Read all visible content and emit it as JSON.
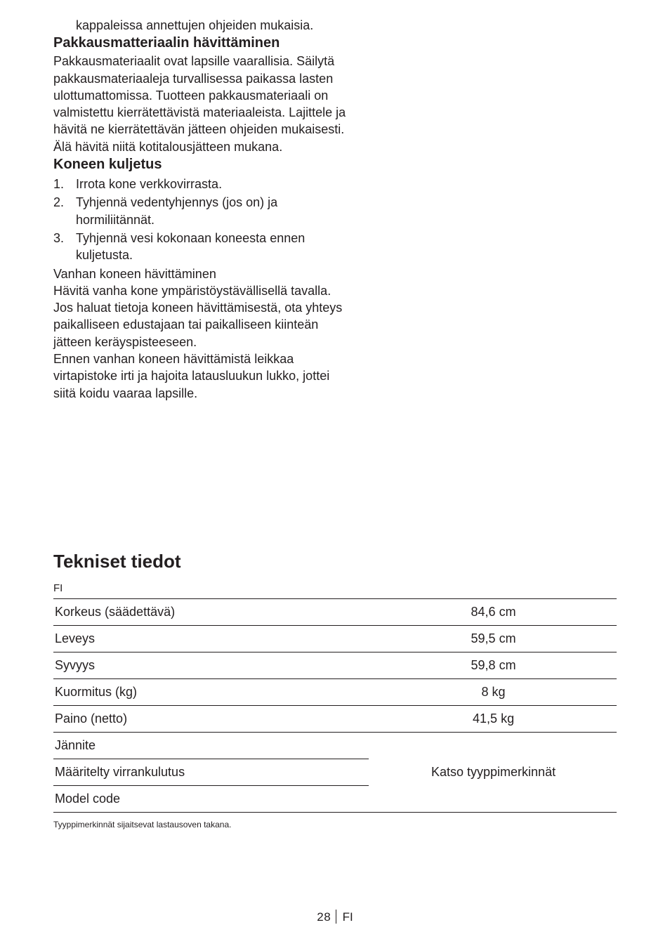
{
  "intro_line": "kappaleissa annettujen ohjeiden mukaisia.",
  "h_packaging": "Pakkausmatteriaalin hävittäminen",
  "p_packaging": "Pakkausmateriaalit ovat lapsille vaarallisia. Säilytä pakkausmateriaaleja turvallisessa paikassa lasten ulottumattomissa. Tuotteen pakkausmateriaali on valmistettu kierrätettävistä materiaaleista. Lajittele ja hävitä ne kierrätettävän jätteen ohjeiden mukaisesti. Älä hävitä niitä kotitalousjätteen mukana.",
  "h_transport": "Koneen kuljetus",
  "transport_items": [
    "Irrota kone verkkovirrasta.",
    "Tyhjennä vedentyhjennys (jos on) ja hormiliitännät.",
    "Tyhjennä vesi kokonaan koneesta ennen kuljetusta."
  ],
  "p_after1": "Vanhan koneen hävittäminen",
  "p_after2": "Hävitä vanha kone ympäristöystävällisellä tavalla.",
  "p_after3": "Jos haluat tietoja koneen hävittämisestä, ota yhteys paikalliseen edustajaan tai paikalliseen kiinteän jätteen keräyspisteeseen.",
  "p_after4": "Ennen vanhan koneen hävittämistä leikkaa virtapistoke irti ja hajoita latausluukun lukko, jottei siitä koidu vaaraa lapsille.",
  "section_title": "Tekniset tiedot",
  "lang_code": "FI",
  "specs": {
    "rows": [
      {
        "label": "Korkeus (säädettävä)",
        "value": "84,6 cm"
      },
      {
        "label": "Leveys",
        "value": "59,5 cm"
      },
      {
        "label": "Syvyys",
        "value": "59,8 cm"
      },
      {
        "label": "Kuormitus (kg)",
        "value": "8 kg"
      },
      {
        "label": "Paino (netto)",
        "value": "41,5 kg"
      }
    ],
    "merged_labels": [
      "Jännite",
      "Määritelty virrankulutus",
      "Model code"
    ],
    "merged_value": "Katso tyyppimerkinnät"
  },
  "footnote": "Tyyppimerkinnät sijaitsevat lastausoven takana.",
  "footer": {
    "page": "28",
    "lang": "FI"
  }
}
